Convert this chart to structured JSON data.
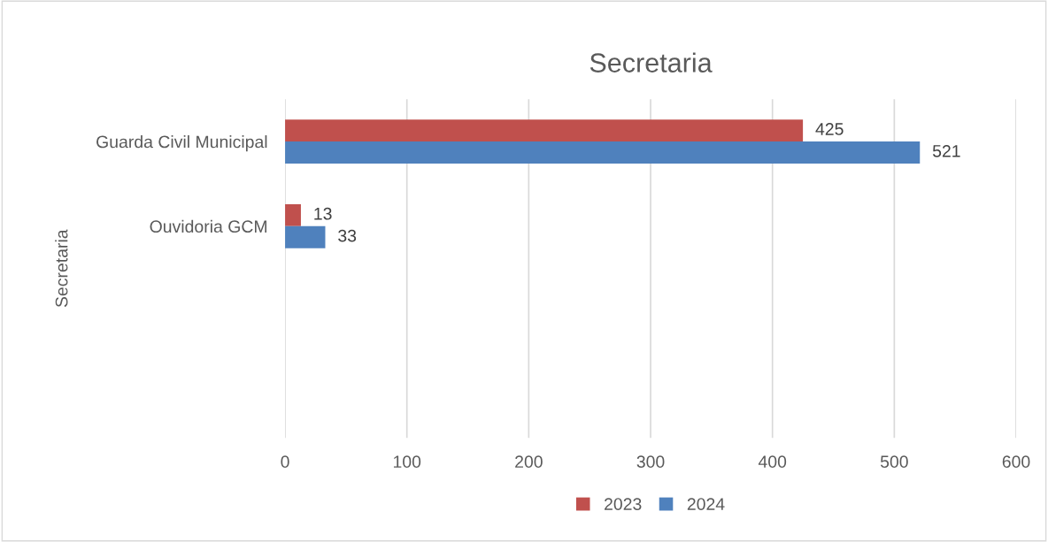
{
  "chart_data": {
    "type": "bar",
    "orientation": "horizontal",
    "title": "Secretaria",
    "ylabel": "Secretaria",
    "categories": [
      "Guarda Civil Municipal",
      "Ouvidoria GCM",
      null,
      null
    ],
    "series": [
      {
        "name": "2023",
        "color": "#c0504d",
        "values": [
          425,
          13,
          null,
          null
        ]
      },
      {
        "name": "2024",
        "color": "#4f81bd",
        "values": [
          521,
          33,
          null,
          null
        ]
      }
    ],
    "xlim": [
      0,
      600
    ],
    "xticks": [
      0,
      100,
      200,
      300,
      400,
      500,
      600
    ],
    "grid": "x",
    "legend": "bottom",
    "data_labels": true
  }
}
